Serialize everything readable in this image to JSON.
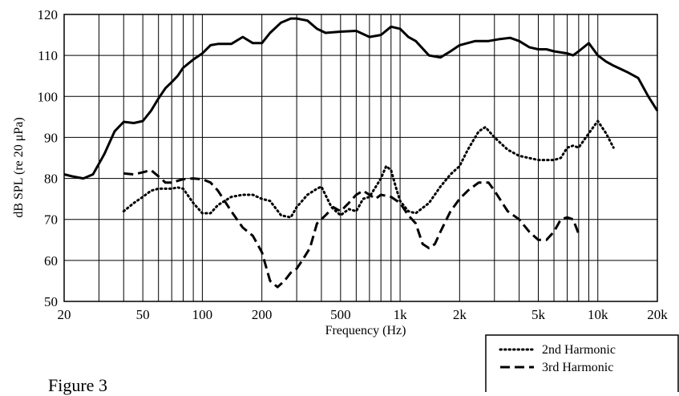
{
  "figure_label": "Figure 3",
  "chart_data": {
    "type": "line",
    "title": "",
    "xlabel": "Frequency (Hz)",
    "ylabel": "dB SPL (re 20 μPa)",
    "x_scale": "log",
    "xlim": [
      20,
      20000
    ],
    "ylim": [
      50,
      120
    ],
    "y_ticks": [
      50,
      60,
      70,
      80,
      90,
      100,
      110,
      120
    ],
    "x_ticks": [
      {
        "value": 20,
        "label": "20"
      },
      {
        "value": 50,
        "label": "50"
      },
      {
        "value": 100,
        "label": "100"
      },
      {
        "value": 200,
        "label": "200"
      },
      {
        "value": 500,
        "label": "500"
      },
      {
        "value": 1000,
        "label": "1k"
      },
      {
        "value": 2000,
        "label": "2k"
      },
      {
        "value": 5000,
        "label": "5k"
      },
      {
        "value": 10000,
        "label": "10k"
      },
      {
        "value": 20000,
        "label": "20k"
      }
    ],
    "grid": {
      "horizontal": true,
      "vertical_log_decades": true
    },
    "legend_position": "bottom-right",
    "series": [
      {
        "style": "solid-thick",
        "x": [
          20,
          22,
          25,
          28,
          32,
          36,
          40,
          45,
          50,
          55,
          60,
          65,
          70,
          75,
          80,
          90,
          100,
          110,
          120,
          140,
          160,
          180,
          200,
          220,
          250,
          280,
          300,
          340,
          380,
          420,
          500,
          600,
          700,
          800,
          900,
          1000,
          1100,
          1200,
          1400,
          1600,
          1800,
          2000,
          2400,
          2800,
          3200,
          3600,
          4000,
          4500,
          5000,
          5500,
          6000,
          7000,
          7500,
          8000,
          9000,
          10000,
          11000,
          12000,
          14000,
          16000,
          18000,
          20000
        ],
        "y": [
          81,
          80.5,
          80,
          81,
          86,
          91.5,
          93.8,
          93.5,
          94,
          96.5,
          99.5,
          102,
          103.5,
          105,
          107,
          109,
          110.5,
          112.5,
          112.8,
          112.8,
          114.5,
          113,
          113,
          115.5,
          118,
          119,
          119,
          118.5,
          116.5,
          115.5,
          115.8,
          116,
          114.5,
          115,
          117,
          116.5,
          114.5,
          113.5,
          110,
          109.5,
          111,
          112.5,
          113.5,
          113.5,
          114,
          114.3,
          113.5,
          112,
          111.5,
          111.5,
          111,
          110.5,
          110,
          111,
          113,
          110,
          108.5,
          107.5,
          106,
          104.5,
          100,
          96.5
        ]
      },
      {
        "name": "2nd Harmonic",
        "style": "dotted",
        "x": [
          40,
          45,
          50,
          55,
          60,
          65,
          70,
          75,
          80,
          90,
          100,
          110,
          120,
          140,
          160,
          180,
          200,
          220,
          250,
          280,
          300,
          340,
          380,
          400,
          450,
          500,
          550,
          600,
          650,
          700,
          800,
          850,
          900,
          950,
          1000,
          1100,
          1200,
          1400,
          1600,
          1800,
          2000,
          2200,
          2500,
          2700,
          3000,
          3500,
          4000,
          5000,
          5500,
          6000,
          6500,
          7000,
          7500,
          8000,
          9000,
          10000,
          11000,
          12000
        ],
        "y": [
          72,
          74,
          75.5,
          77,
          77.5,
          77.5,
          77.5,
          77.8,
          77.5,
          74,
          71.5,
          71.5,
          73.5,
          75.5,
          76,
          76,
          75,
          74.5,
          71,
          70.5,
          73,
          76,
          77.5,
          78,
          73,
          71,
          72.5,
          72,
          75,
          75.5,
          80,
          83,
          82,
          78,
          74.5,
          72,
          71.5,
          74,
          78,
          81,
          83,
          87,
          91.5,
          92.5,
          90,
          87,
          85.5,
          84.5,
          84.5,
          84.5,
          85,
          87.5,
          88,
          87.5,
          91,
          94,
          91,
          87.5
        ]
      },
      {
        "name": "3rd Harmonic",
        "style": "dashed-thick",
        "x": [
          40,
          45,
          50,
          55,
          60,
          65,
          70,
          80,
          90,
          100,
          110,
          120,
          140,
          160,
          180,
          200,
          220,
          240,
          260,
          280,
          300,
          320,
          350,
          380,
          420,
          460,
          500,
          550,
          600,
          650,
          700,
          750,
          800,
          900,
          1000,
          1100,
          1200,
          1300,
          1400,
          1500,
          1600,
          1800,
          2000,
          2200,
          2500,
          2800,
          3000,
          3500,
          4000,
          4500,
          5000,
          5500,
          6000,
          6500,
          7000,
          7500,
          8000
        ],
        "y": [
          81.2,
          81,
          81.5,
          82,
          80.5,
          79,
          79,
          79.8,
          80,
          79.8,
          79,
          77,
          72,
          68,
          66,
          62,
          55,
          53.5,
          55,
          57,
          58,
          60,
          63,
          69,
          71,
          73,
          72,
          74,
          76,
          77,
          76,
          75,
          76,
          75.5,
          74,
          71,
          69,
          64,
          63,
          64,
          67,
          72,
          75,
          77,
          79,
          79,
          77,
          72,
          70,
          67,
          65,
          65,
          67,
          70,
          70.5,
          70,
          66.5
        ]
      }
    ]
  }
}
